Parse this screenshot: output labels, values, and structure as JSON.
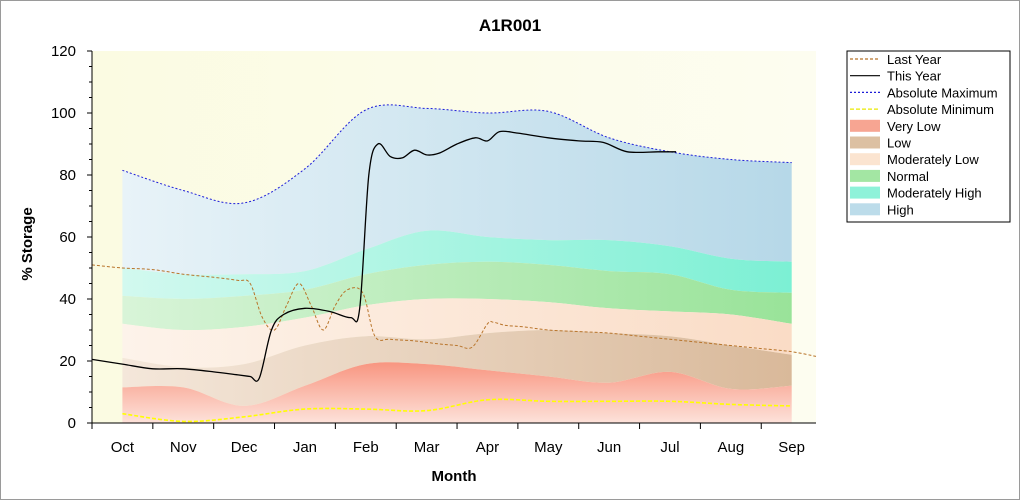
{
  "chart_data": {
    "type": "area",
    "title": "A1R001",
    "xlabel": "Month",
    "ylabel": "% Storage",
    "ylim": [
      0,
      120
    ],
    "yticks": [
      0,
      20,
      40,
      60,
      80,
      100,
      120
    ],
    "xlim": [
      -0.5,
      11.4
    ],
    "categories": [
      "Oct",
      "Nov",
      "Dec",
      "Jan",
      "Feb",
      "Mar",
      "Apr",
      "May",
      "Jun",
      "Jul",
      "Aug",
      "Sep"
    ],
    "grid": false,
    "legend_position": "right",
    "bands": {
      "x": [
        0,
        1,
        2,
        3,
        4,
        5,
        6,
        7,
        8,
        9,
        10,
        11
      ],
      "abs_min": [
        3,
        0.5,
        2,
        4.5,
        4.5,
        4,
        7.5,
        7,
        7,
        7,
        6,
        5.5
      ],
      "very_low": [
        11.5,
        11.5,
        5.5,
        12,
        19,
        19,
        17,
        15,
        13,
        16.5,
        11,
        12
      ],
      "low": [
        21,
        18,
        19,
        25,
        28,
        27,
        29,
        30,
        29,
        28,
        25,
        22
      ],
      "moderately_low": [
        32,
        30,
        31,
        34,
        38,
        40,
        40,
        39,
        37,
        36,
        35,
        32
      ],
      "normal": [
        41,
        40,
        41,
        43,
        48,
        51,
        52,
        51,
        49,
        48,
        43,
        42
      ],
      "moderately_high": [
        50,
        48,
        48,
        49,
        56,
        62,
        60,
        59,
        59,
        57,
        53,
        52
      ],
      "abs_max": [
        81.5,
        75,
        71,
        82,
        101,
        101.5,
        100,
        100.5,
        92,
        87.5,
        85,
        84
      ]
    },
    "series": [
      {
        "name": "Last Year",
        "color": "#b8742a",
        "dash": "3,2",
        "x": [
          -0.5,
          0,
          0.5,
          1,
          1.5,
          1.9,
          2.1,
          2.3,
          2.5,
          2.7,
          2.9,
          3.1,
          3.3,
          3.5,
          3.7,
          3.95,
          4.15,
          4.4,
          4.8,
          5.2,
          5.5,
          5.75,
          6.0,
          6.1,
          6.3,
          6.6,
          7,
          7.5,
          8,
          8.5,
          9,
          9.5,
          10,
          10.5,
          11,
          11.4
        ],
        "y": [
          51,
          50,
          49.5,
          48,
          47,
          46,
          45,
          34,
          30,
          38,
          45,
          38,
          30,
          38,
          43,
          42,
          28,
          27,
          26.5,
          25.5,
          25,
          24.5,
          32,
          32.5,
          31.5,
          31,
          30,
          29.5,
          29,
          28,
          27,
          26,
          25,
          24,
          23,
          21.5
        ]
      },
      {
        "name": "This Year",
        "color": "#000000",
        "dash": "",
        "x": [
          -0.5,
          0,
          0.5,
          1,
          1.5,
          1.9,
          2.1,
          2.25,
          2.45,
          2.65,
          3,
          3.4,
          3.75,
          3.9,
          4.05,
          4.2,
          4.4,
          4.6,
          4.8,
          5.0,
          5.2,
          5.5,
          5.8,
          6.0,
          6.2,
          6.5,
          7,
          7.5,
          7.9,
          8.3,
          8.8,
          9.1
        ],
        "y": [
          20.5,
          19,
          17.5,
          17.5,
          16.5,
          15.5,
          15,
          14.5,
          30,
          35,
          37,
          36,
          34,
          37,
          80,
          90,
          86,
          85.5,
          88,
          86.5,
          87,
          90,
          92,
          91,
          94,
          93.5,
          92,
          91,
          90.5,
          87.5,
          87.5,
          87.5
        ]
      },
      {
        "name": "Absolute Maximum",
        "color": "#1d1dd8",
        "dash": "2,2",
        "x": [
          0,
          1,
          2,
          3,
          4,
          5,
          6,
          7,
          8,
          9,
          10,
          11
        ],
        "y": [
          81.5,
          75,
          71,
          82,
          101,
          101.5,
          100,
          100.5,
          92,
          87.5,
          85,
          84
        ]
      },
      {
        "name": "Absolute Minimum",
        "color": "#ffff00",
        "dash": "4,2",
        "x": [
          0,
          1,
          2,
          3,
          4,
          5,
          6,
          7,
          8,
          9,
          10,
          11
        ],
        "y": [
          3,
          0.5,
          2,
          4.5,
          4.5,
          4,
          7.5,
          7,
          7,
          7,
          6,
          5.5
        ]
      }
    ],
    "legend": [
      {
        "label": "Last Year",
        "kind": "line",
        "color": "#b8742a",
        "dash": "3,2"
      },
      {
        "label": "This Year",
        "kind": "line",
        "color": "#000000",
        "dash": ""
      },
      {
        "label": "Absolute Maximum",
        "kind": "line",
        "color": "#1d1dd8",
        "dash": "2,2"
      },
      {
        "label": "Absolute Minimum",
        "kind": "line",
        "color": "#e8e800",
        "dash": "4,2"
      },
      {
        "label": "Very Low",
        "kind": "swatch",
        "color": "#f7a592"
      },
      {
        "label": "Low",
        "kind": "swatch",
        "color": "#dcc0a2"
      },
      {
        "label": "Moderately Low",
        "kind": "swatch",
        "color": "#fbe4d0"
      },
      {
        "label": "Normal",
        "kind": "swatch",
        "color": "#a3e6a3"
      },
      {
        "label": "Moderately High",
        "kind": "swatch",
        "color": "#8ef2d9"
      },
      {
        "label": "High",
        "kind": "swatch",
        "color": "#bcdcea"
      }
    ],
    "band_colors": {
      "very_low": "#f7a592",
      "low": "#dcc0a2",
      "moderately_low": "#fbe4d0",
      "normal": "#a3e6a3",
      "moderately_high": "#8ef2d9",
      "high": "#bcdcea",
      "plot_background": "#fbfbe2"
    }
  }
}
